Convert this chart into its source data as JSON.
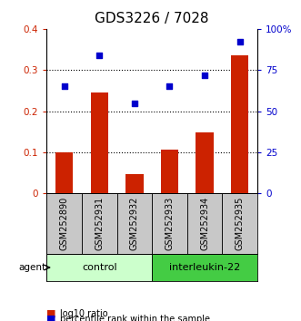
{
  "title": "GDS3226 / 7028",
  "categories": [
    "GSM252890",
    "GSM252931",
    "GSM252932",
    "GSM252933",
    "GSM252934",
    "GSM252935"
  ],
  "bar_values": [
    0.1,
    0.245,
    0.048,
    0.107,
    0.148,
    0.335
  ],
  "scatter_values_pct": [
    65,
    84,
    55,
    65,
    72,
    92
  ],
  "bar_color": "#cc2200",
  "scatter_color": "#0000cc",
  "ylim_left": [
    0,
    0.4
  ],
  "ylim_right": [
    0,
    100
  ],
  "yticks_left": [
    0,
    0.1,
    0.2,
    0.3,
    0.4
  ],
  "ytick_labels_left": [
    "0",
    "0.1",
    "0.2",
    "0.3",
    "0.4"
  ],
  "yticks_right": [
    0,
    25,
    50,
    75,
    100
  ],
  "ytick_labels_right": [
    "0",
    "25",
    "50",
    "75",
    "100%"
  ],
  "control_indices": [
    0,
    1,
    2
  ],
  "interleukin_indices": [
    3,
    4,
    5
  ],
  "control_label": "control",
  "interleukin_label": "interleukin-22",
  "agent_label": "agent",
  "legend_bar_label": "log10 ratio",
  "legend_scatter_label": "percentile rank within the sample",
  "control_color": "#ccffcc",
  "interleukin_color": "#44cc44",
  "tick_color_left": "#cc2200",
  "tick_color_right": "#0000cc",
  "bar_width": 0.5,
  "sample_bg_color": "#c8c8c8"
}
